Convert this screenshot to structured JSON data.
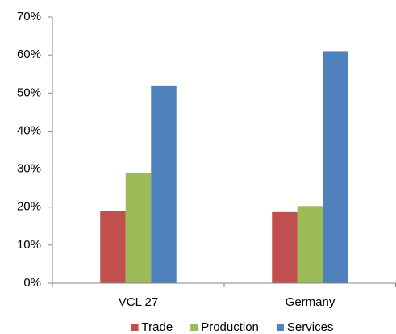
{
  "chart_data": {
    "type": "bar",
    "categories": [
      "VCL 27",
      "Germany"
    ],
    "series": [
      {
        "name": "Trade",
        "color": "#c0504d",
        "values": [
          19,
          18.7
        ]
      },
      {
        "name": "Production",
        "color": "#9bbb59",
        "values": [
          29,
          20.3
        ]
      },
      {
        "name": "Services",
        "color": "#4f81bd",
        "values": [
          52,
          61
        ]
      }
    ],
    "ylim": [
      0,
      70
    ],
    "yticks": [
      {
        "value": 0,
        "label": "0%"
      },
      {
        "value": 10,
        "label": "10%"
      },
      {
        "value": 20,
        "label": "20%"
      },
      {
        "value": 30,
        "label": "30%"
      },
      {
        "value": 40,
        "label": "40%"
      },
      {
        "value": 50,
        "label": "50%"
      },
      {
        "value": 60,
        "label": "60%"
      },
      {
        "value": 70,
        "label": "70%"
      }
    ],
    "grid": false,
    "legend": "bottom"
  }
}
